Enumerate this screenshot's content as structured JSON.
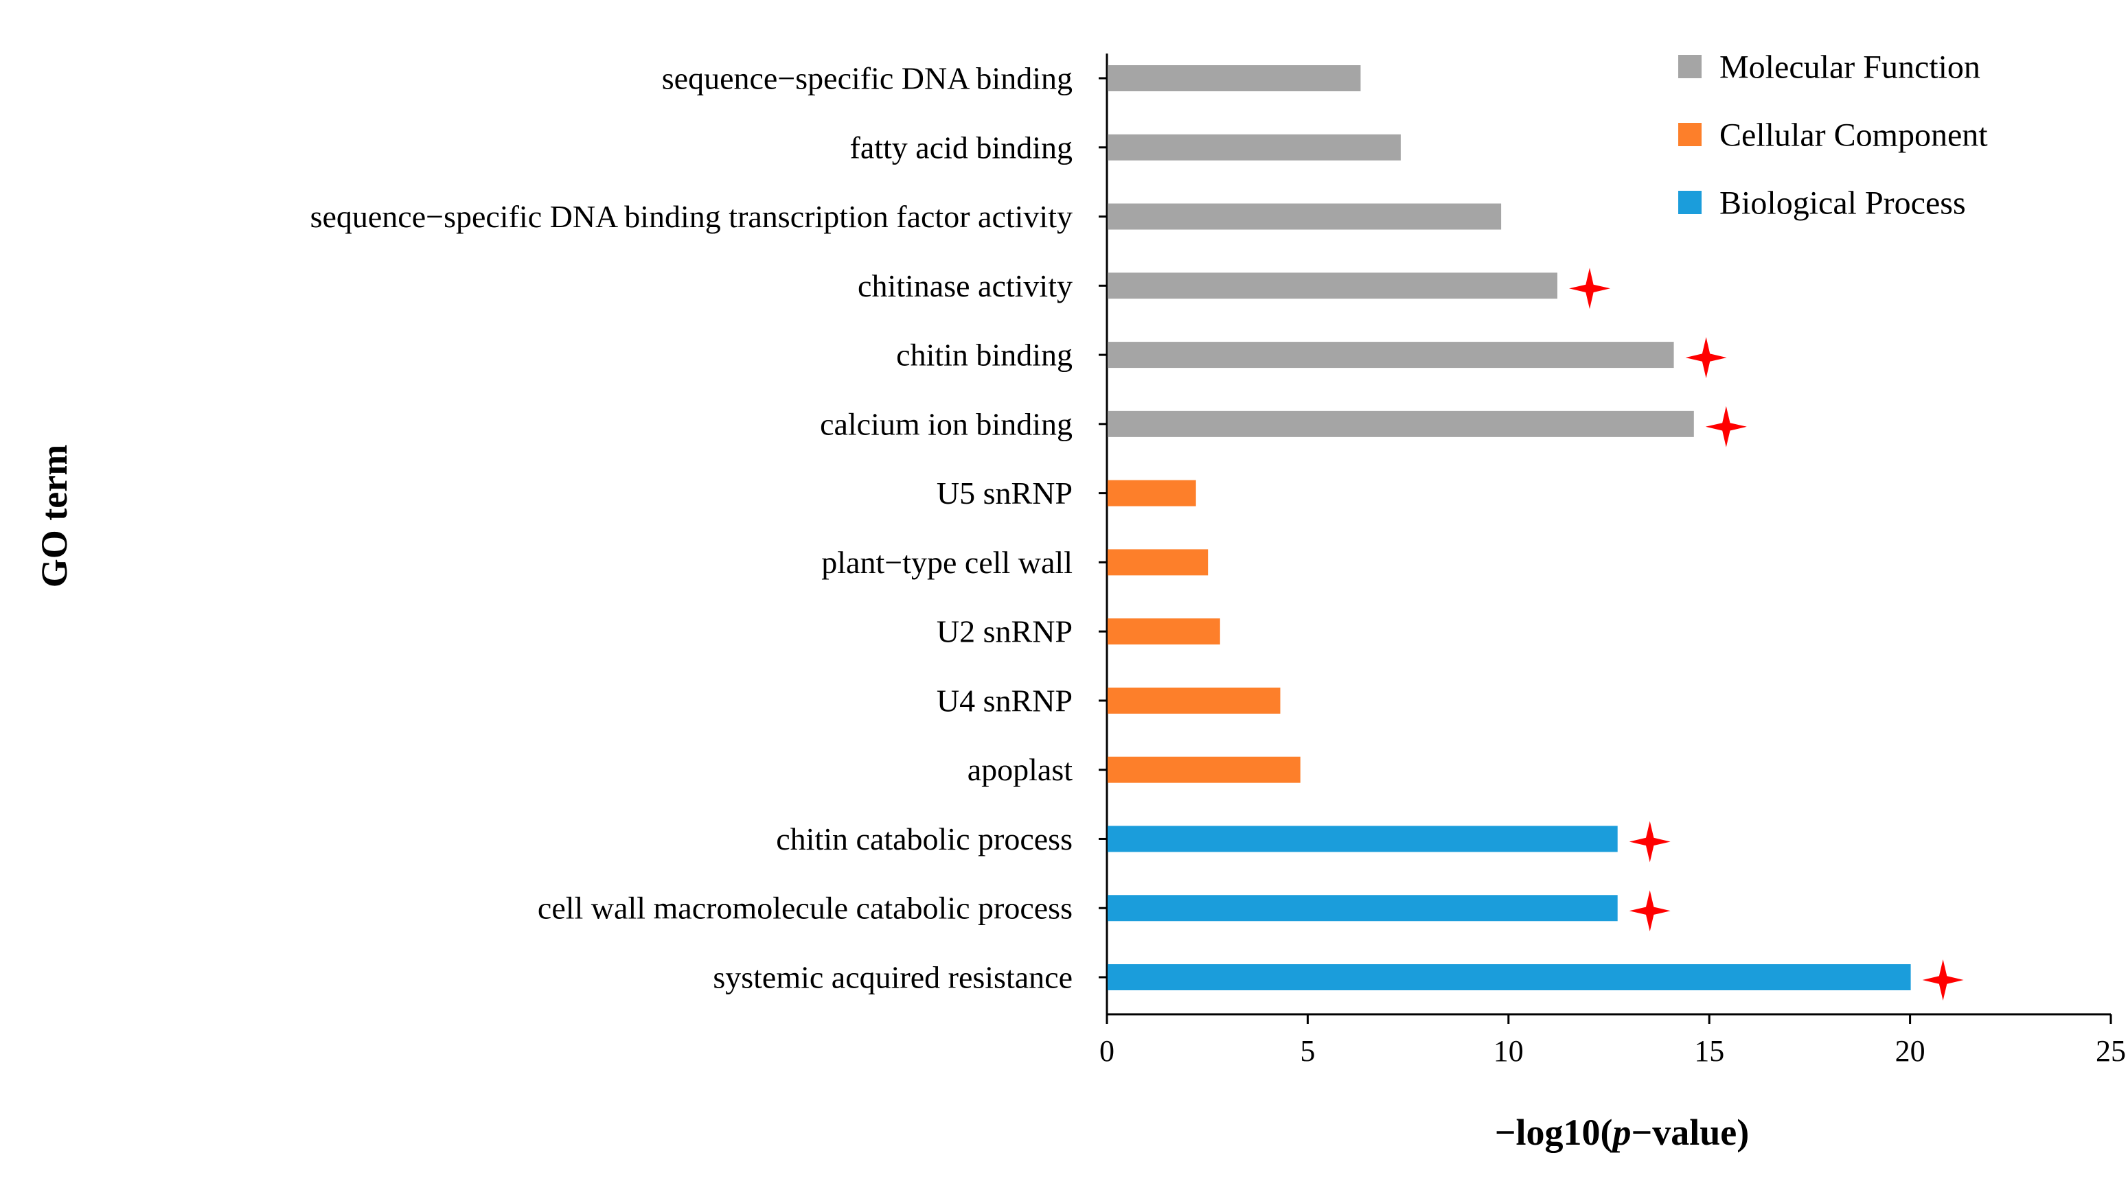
{
  "chart_data": {
    "type": "bar",
    "orientation": "horizontal",
    "title": "",
    "xlabel": "−log10(p−value)",
    "xlabel_prefix": "−log10(",
    "xlabel_italic": "p",
    "xlabel_suffix": "−value)",
    "ylabel": "GO term",
    "xlim": [
      0,
      25
    ],
    "xticks": [
      0,
      5,
      10,
      15,
      20,
      25
    ],
    "grid": false,
    "legend_position": "top-right",
    "series": [
      {
        "name": "Molecular Function",
        "color": "#a5a5a5"
      },
      {
        "name": "Cellular Component",
        "color": "#fd7f2a"
      },
      {
        "name": "Biological Process",
        "color": "#1b9ddb"
      }
    ],
    "bars": [
      {
        "label": "sequence−specific DNA binding",
        "value": 6.3,
        "series": "Molecular Function",
        "significant": false
      },
      {
        "label": "fatty acid binding",
        "value": 7.3,
        "series": "Molecular Function",
        "significant": false
      },
      {
        "label": "sequence−specific DNA binding transcription factor activity",
        "value": 9.8,
        "series": "Molecular Function",
        "significant": false
      },
      {
        "label": "chitinase activity",
        "value": 11.2,
        "series": "Molecular Function",
        "significant": true
      },
      {
        "label": "chitin binding",
        "value": 14.1,
        "series": "Molecular Function",
        "significant": true
      },
      {
        "label": "calcium ion binding",
        "value": 14.6,
        "series": "Molecular Function",
        "significant": true
      },
      {
        "label": "U5 snRNP",
        "value": 2.2,
        "series": "Cellular Component",
        "significant": false
      },
      {
        "label": "plant−type cell wall",
        "value": 2.5,
        "series": "Cellular Component",
        "significant": false
      },
      {
        "label": "U2 snRNP",
        "value": 2.8,
        "series": "Cellular Component",
        "significant": false
      },
      {
        "label": "U4 snRNP",
        "value": 4.3,
        "series": "Cellular Component",
        "significant": false
      },
      {
        "label": "apoplast",
        "value": 4.8,
        "series": "Cellular Component",
        "significant": false
      },
      {
        "label": "chitin catabolic process",
        "value": 12.7,
        "series": "Biological Process",
        "significant": true
      },
      {
        "label": "cell wall macromolecule catabolic process",
        "value": 12.7,
        "series": "Biological Process",
        "significant": true
      },
      {
        "label": "systemic acquired resistance",
        "value": 20.0,
        "series": "Biological Process",
        "significant": true
      }
    ],
    "marker_color": "#ff0000",
    "marker_meaning": "significant"
  }
}
